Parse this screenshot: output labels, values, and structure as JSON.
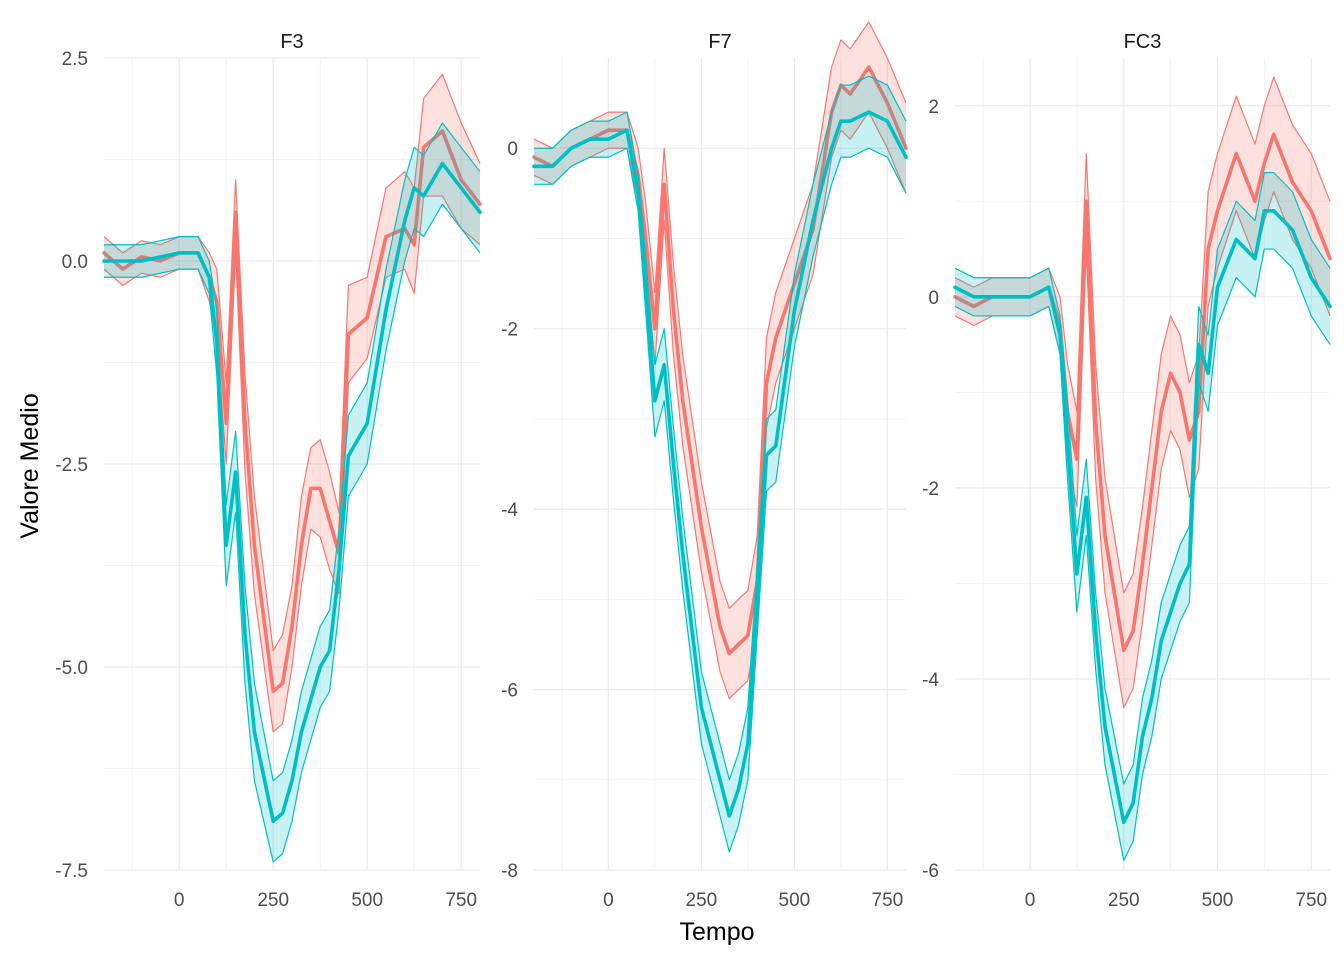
{
  "figure": {
    "xlabel": "Tempo",
    "ylabel": "Valore Medio",
    "x_ticks": [
      0,
      250,
      500,
      750
    ],
    "x_tick_labels": [
      "0",
      "250",
      "500",
      "750"
    ],
    "colors": {
      "red_series": "#F8766D",
      "cyan_series": "#00BFC4",
      "grid": "#ebebeb"
    }
  },
  "chart_data": [
    {
      "type": "line",
      "title": "F3",
      "xlim": [
        -200,
        800
      ],
      "ylim": [
        -7.5,
        2.5
      ],
      "y_ticks": [
        -7.5,
        -5.0,
        -2.5,
        0.0,
        2.5
      ],
      "y_tick_labels": [
        "-7.5",
        "-5.0",
        "-2.5",
        "0.0",
        "2.5"
      ],
      "x": [
        -200,
        -150,
        -100,
        -50,
        0,
        50,
        80,
        100,
        125,
        150,
        175,
        200,
        250,
        275,
        300,
        325,
        350,
        375,
        400,
        425,
        450,
        500,
        550,
        600,
        625,
        650,
        700,
        750,
        800
      ],
      "series": [
        {
          "color": "#F8766D",
          "values": [
            0.1,
            -0.1,
            0.05,
            0.0,
            0.1,
            0.1,
            -0.2,
            -0.5,
            -2.0,
            0.6,
            -2.0,
            -3.5,
            -5.3,
            -5.2,
            -4.5,
            -3.5,
            -2.8,
            -2.8,
            -3.2,
            -3.6,
            -0.9,
            -0.7,
            0.3,
            0.4,
            0.2,
            1.4,
            1.6,
            1.0,
            0.7
          ],
          "lower": [
            -0.1,
            -0.3,
            -0.15,
            -0.2,
            -0.1,
            -0.1,
            -0.5,
            -0.9,
            -2.5,
            0.1,
            -2.6,
            -4.1,
            -5.8,
            -5.7,
            -5.0,
            -4.0,
            -3.3,
            -3.4,
            -3.8,
            -4.1,
            -1.5,
            -1.2,
            -0.2,
            -0.1,
            -0.4,
            0.8,
            0.8,
            0.4,
            0.2
          ],
          "upper": [
            0.3,
            0.1,
            0.25,
            0.2,
            0.3,
            0.3,
            0.1,
            -0.1,
            -1.5,
            1.0,
            -1.4,
            -2.9,
            -4.8,
            -4.6,
            -4.0,
            -2.9,
            -2.3,
            -2.2,
            -2.6,
            -3.1,
            -0.3,
            -0.2,
            0.9,
            1.1,
            0.9,
            2.0,
            2.3,
            1.7,
            1.2
          ]
        },
        {
          "color": "#00BFC4",
          "values": [
            0.0,
            0.0,
            0.0,
            0.05,
            0.1,
            0.1,
            -0.2,
            -1.0,
            -3.5,
            -2.6,
            -4.6,
            -5.8,
            -6.9,
            -6.8,
            -6.4,
            -5.8,
            -5.4,
            -5.0,
            -4.8,
            -3.8,
            -2.4,
            -2.0,
            -0.6,
            0.5,
            0.9,
            0.8,
            1.2,
            0.9,
            0.6
          ],
          "lower": [
            -0.2,
            -0.2,
            -0.2,
            -0.15,
            -0.1,
            -0.1,
            -0.4,
            -1.4,
            -4.0,
            -3.1,
            -5.2,
            -6.4,
            -7.4,
            -7.3,
            -6.9,
            -6.3,
            -5.9,
            -5.5,
            -5.3,
            -4.3,
            -2.9,
            -2.5,
            -1.1,
            0.0,
            0.4,
            0.3,
            0.7,
            0.4,
            0.1
          ],
          "upper": [
            0.2,
            0.2,
            0.2,
            0.25,
            0.3,
            0.3,
            0.0,
            -0.6,
            -3.0,
            -2.1,
            -4.0,
            -5.2,
            -6.4,
            -6.3,
            -5.9,
            -5.3,
            -4.9,
            -4.5,
            -4.3,
            -3.3,
            -1.9,
            -1.5,
            -0.1,
            1.0,
            1.4,
            1.3,
            1.7,
            1.4,
            1.1
          ]
        }
      ]
    },
    {
      "type": "line",
      "title": "F7",
      "xlim": [
        -200,
        800
      ],
      "ylim": [
        -8,
        1
      ],
      "y_ticks": [
        -8,
        -6,
        -4,
        -2,
        0
      ],
      "y_tick_labels": [
        "-8",
        "-6",
        "-4",
        "-2",
        "0"
      ],
      "x": [
        -200,
        -150,
        -100,
        -50,
        0,
        50,
        80,
        100,
        125,
        150,
        175,
        200,
        250,
        300,
        325,
        350,
        375,
        400,
        425,
        450,
        500,
        550,
        600,
        625,
        650,
        700,
        750,
        800
      ],
      "series": [
        {
          "color": "#F8766D",
          "values": [
            -0.1,
            -0.2,
            0.0,
            0.1,
            0.2,
            0.2,
            -0.3,
            -1.0,
            -2.0,
            -0.4,
            -1.8,
            -2.8,
            -4.2,
            -5.3,
            -5.6,
            -5.5,
            -5.4,
            -4.8,
            -2.6,
            -2.1,
            -1.5,
            -0.9,
            0.4,
            0.7,
            0.6,
            0.9,
            0.5,
            0.0
          ],
          "lower": [
            -0.3,
            -0.4,
            -0.2,
            -0.1,
            0.0,
            0.0,
            -0.6,
            -1.4,
            -2.4,
            -0.8,
            -2.3,
            -3.3,
            -4.7,
            -5.8,
            -6.1,
            -6.0,
            -5.9,
            -5.3,
            -3.1,
            -2.6,
            -2.0,
            -1.4,
            -0.1,
            0.2,
            0.1,
            0.4,
            0.0,
            -0.5
          ],
          "upper": [
            0.1,
            0.0,
            0.2,
            0.3,
            0.4,
            0.4,
            0.0,
            -0.6,
            -1.6,
            0.0,
            -1.3,
            -2.3,
            -3.7,
            -4.8,
            -5.1,
            -5.0,
            -4.9,
            -4.3,
            -2.1,
            -1.6,
            -1.0,
            -0.4,
            0.9,
            1.2,
            1.1,
            1.4,
            1.0,
            0.5
          ]
        },
        {
          "color": "#00BFC4",
          "values": [
            -0.2,
            -0.2,
            0.0,
            0.1,
            0.1,
            0.2,
            -0.5,
            -1.5,
            -2.8,
            -2.4,
            -3.5,
            -4.5,
            -6.2,
            -7.0,
            -7.4,
            -7.1,
            -6.6,
            -5.0,
            -3.4,
            -3.3,
            -1.8,
            -0.8,
            0.0,
            0.3,
            0.3,
            0.4,
            0.3,
            -0.1
          ],
          "lower": [
            -0.4,
            -0.4,
            -0.2,
            -0.1,
            -0.1,
            0.0,
            -0.7,
            -1.8,
            -3.2,
            -2.8,
            -3.9,
            -4.9,
            -6.6,
            -7.4,
            -7.8,
            -7.5,
            -7.0,
            -5.4,
            -3.8,
            -3.7,
            -2.2,
            -1.2,
            -0.4,
            -0.1,
            -0.1,
            0.0,
            -0.1,
            -0.5
          ],
          "upper": [
            0.0,
            0.0,
            0.2,
            0.3,
            0.3,
            0.4,
            -0.3,
            -1.2,
            -2.4,
            -2.0,
            -3.1,
            -4.1,
            -5.8,
            -6.6,
            -7.0,
            -6.7,
            -6.2,
            -4.6,
            -3.0,
            -2.9,
            -1.4,
            -0.4,
            0.4,
            0.7,
            0.7,
            0.8,
            0.7,
            0.3
          ]
        }
      ]
    },
    {
      "type": "line",
      "title": "FC3",
      "xlim": [
        -200,
        800
      ],
      "ylim": [
        -6,
        2.5
      ],
      "y_ticks": [
        -6,
        -4,
        -2,
        0,
        2
      ],
      "y_tick_labels": [
        "-6",
        "-4",
        "-2",
        "0",
        "2"
      ],
      "x": [
        -200,
        -150,
        -100,
        -50,
        0,
        50,
        80,
        100,
        125,
        150,
        175,
        200,
        250,
        275,
        300,
        325,
        350,
        375,
        400,
        425,
        450,
        475,
        500,
        550,
        600,
        625,
        650,
        700,
        750,
        800
      ],
      "series": [
        {
          "color": "#F8766D",
          "values": [
            0.0,
            -0.1,
            0.0,
            0.0,
            0.0,
            0.1,
            -0.3,
            -1.2,
            -1.7,
            1.0,
            -1.3,
            -2.5,
            -3.7,
            -3.5,
            -2.8,
            -2.0,
            -1.2,
            -0.8,
            -1.0,
            -1.5,
            -1.2,
            0.5,
            0.9,
            1.5,
            1.0,
            1.4,
            1.7,
            1.2,
            0.9,
            0.4
          ],
          "lower": [
            -0.2,
            -0.3,
            -0.2,
            -0.2,
            -0.2,
            -0.1,
            -0.6,
            -1.7,
            -2.2,
            0.5,
            -1.9,
            -3.1,
            -4.3,
            -4.1,
            -3.4,
            -2.6,
            -1.8,
            -1.4,
            -1.6,
            -2.1,
            -1.8,
            -0.1,
            0.3,
            0.9,
            0.4,
            0.8,
            1.1,
            0.6,
            0.3,
            -0.2
          ],
          "upper": [
            0.2,
            0.1,
            0.2,
            0.2,
            0.2,
            0.3,
            0.0,
            -0.7,
            -1.2,
            1.5,
            -0.7,
            -1.9,
            -3.1,
            -2.9,
            -2.2,
            -1.4,
            -0.6,
            -0.2,
            -0.4,
            -0.9,
            -0.6,
            1.1,
            1.5,
            2.1,
            1.6,
            2.0,
            2.3,
            1.8,
            1.5,
            1.0
          ]
        },
        {
          "color": "#00BFC4",
          "values": [
            0.1,
            0.0,
            0.0,
            0.0,
            0.0,
            0.1,
            -0.4,
            -1.5,
            -2.9,
            -2.1,
            -3.5,
            -4.5,
            -5.5,
            -5.3,
            -4.6,
            -4.2,
            -3.6,
            -3.3,
            -3.0,
            -2.8,
            -0.5,
            -0.8,
            0.1,
            0.6,
            0.4,
            0.9,
            0.9,
            0.7,
            0.2,
            -0.1
          ],
          "lower": [
            -0.1,
            -0.2,
            -0.2,
            -0.2,
            -0.2,
            -0.1,
            -0.6,
            -1.9,
            -3.3,
            -2.5,
            -3.9,
            -4.9,
            -5.9,
            -5.7,
            -5.0,
            -4.6,
            -4.0,
            -3.7,
            -3.4,
            -3.2,
            -0.9,
            -1.2,
            -0.3,
            0.2,
            0.0,
            0.5,
            0.5,
            0.3,
            -0.2,
            -0.5
          ],
          "upper": [
            0.3,
            0.2,
            0.2,
            0.2,
            0.2,
            0.3,
            -0.2,
            -1.1,
            -2.5,
            -1.7,
            -3.1,
            -4.1,
            -5.1,
            -4.9,
            -4.2,
            -3.8,
            -3.2,
            -2.9,
            -2.6,
            -2.4,
            -0.1,
            -0.4,
            0.5,
            1.0,
            0.8,
            1.3,
            1.3,
            1.1,
            0.6,
            0.3
          ]
        }
      ]
    }
  ]
}
